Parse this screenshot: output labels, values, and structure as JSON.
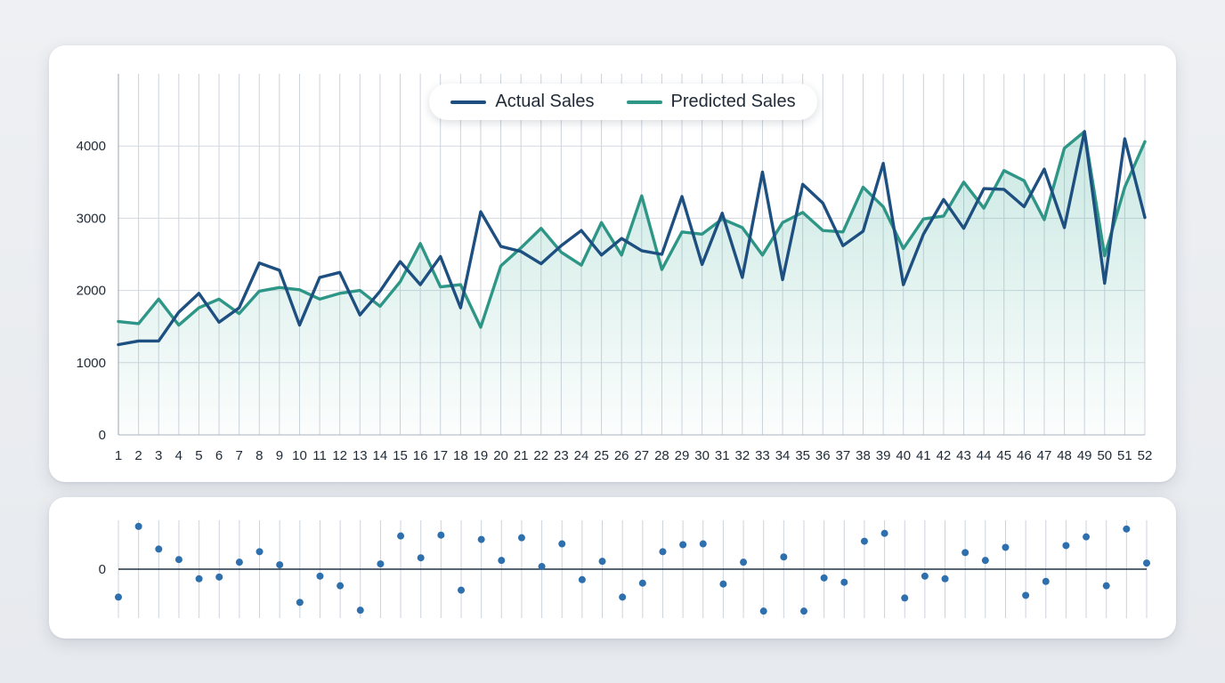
{
  "chart_data": [
    {
      "type": "line",
      "title": "",
      "xlabel": "",
      "ylabel": "",
      "x": [
        1,
        2,
        3,
        4,
        5,
        6,
        7,
        8,
        9,
        10,
        11,
        12,
        13,
        14,
        15,
        16,
        17,
        18,
        19,
        20,
        21,
        22,
        23,
        24,
        25,
        26,
        27,
        28,
        29,
        30,
        31,
        32,
        33,
        34,
        35,
        36,
        37,
        38,
        39,
        40,
        41,
        42,
        43,
        44,
        45,
        46,
        47,
        48,
        49,
        50,
        51,
        52
      ],
      "y_ticks": [
        0,
        1000,
        2000,
        3000,
        4000
      ],
      "ylim": [
        0,
        5000
      ],
      "grid": true,
      "legend_position": "top-center",
      "area_fill_series": "Predicted Sales",
      "series": [
        {
          "name": "Actual Sales",
          "color": "#1d4f80",
          "values": [
            1250,
            1300,
            1300,
            1700,
            1960,
            1560,
            1760,
            2380,
            2280,
            1520,
            2180,
            2250,
            1660,
            1990,
            2400,
            2080,
            2470,
            1760,
            3090,
            2610,
            2540,
            2370,
            2620,
            2830,
            2490,
            2720,
            2550,
            2500,
            3300,
            2360,
            3070,
            2180,
            3640,
            2150,
            3470,
            3210,
            2620,
            2820,
            3760,
            2080,
            2780,
            3260,
            2860,
            3410,
            3400,
            3160,
            3680,
            2870,
            4200,
            2100,
            4100,
            3010
          ]
        },
        {
          "name": "Predicted Sales",
          "color": "#2e9686",
          "values": [
            1570,
            1540,
            1880,
            1520,
            1760,
            1880,
            1680,
            1990,
            2040,
            2010,
            1880,
            1960,
            2000,
            1780,
            2120,
            2650,
            2050,
            2080,
            1490,
            2340,
            2590,
            2860,
            2530,
            2350,
            2940,
            2490,
            3310,
            2290,
            2810,
            2780,
            2990,
            2870,
            2490,
            2940,
            3080,
            2830,
            2810,
            3430,
            3160,
            2580,
            2990,
            3030,
            3500,
            3140,
            3660,
            3520,
            2980,
            3970,
            4200,
            2480,
            3430,
            4060
          ]
        }
      ]
    },
    {
      "type": "scatter",
      "title": "",
      "xlabel": "",
      "ylabel": "",
      "x": [
        1,
        2,
        3,
        4,
        5,
        6,
        7,
        8,
        9,
        10,
        11,
        12,
        13,
        14,
        15,
        16,
        17,
        18,
        19,
        20,
        21,
        22,
        23,
        24,
        25,
        26,
        27,
        28,
        29,
        30,
        31,
        32,
        33,
        34,
        35,
        36,
        37,
        38,
        39,
        40,
        41,
        42,
        43,
        44,
        45,
        46,
        47,
        48,
        49,
        50,
        51,
        52
      ],
      "y_ticks": [
        0
      ],
      "ylim": [
        -560,
        560
      ],
      "baseline": 0,
      "color": "#2e6fad",
      "values": [
        -320,
        490,
        230,
        110,
        -110,
        -90,
        80,
        200,
        50,
        -380,
        -80,
        -190,
        -470,
        60,
        380,
        130,
        390,
        -240,
        340,
        100,
        360,
        30,
        290,
        -120,
        90,
        -320,
        -160,
        200,
        280,
        290,
        -170,
        80,
        -480,
        140,
        -480,
        -100,
        -150,
        320,
        410,
        -330,
        -80,
        -110,
        190,
        100,
        250,
        -300,
        -140,
        270,
        370,
        -190,
        460,
        70
      ]
    }
  ]
}
